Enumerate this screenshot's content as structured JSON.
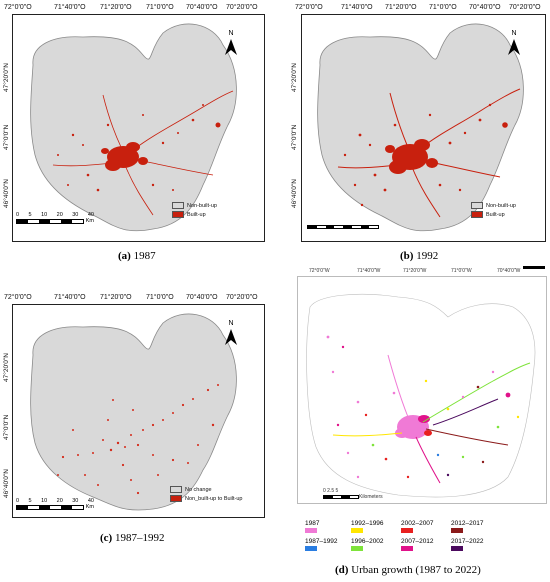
{
  "panels": {
    "a": {
      "caption_label": "(a)",
      "caption_text": "1987",
      "lon_ticks": [
        "72°0'0\"O",
        "71°40'0\"O",
        "71°20'0\"O",
        "71°0'0\"O",
        "70°40'0\"O",
        "70°20'0\"O"
      ],
      "lat_ticks": [
        "47°20'0\"N",
        "47°0'0\"N",
        "46°40'0\"N"
      ],
      "legend": [
        "Non-built-up",
        "Built-up"
      ],
      "scale_labels": [
        "0",
        "5",
        "10",
        "20",
        "30",
        "40"
      ],
      "scale_unit": "Km"
    },
    "b": {
      "caption_label": "(b)",
      "caption_text": "1992",
      "lon_ticks": [
        "72°0'0\"O",
        "71°40'0\"O",
        "71°20'0\"O",
        "71°0'0\"O",
        "70°40'0\"O",
        "70°20'0\"O"
      ],
      "lat_ticks": [
        "47°20'0\"N",
        "47°0'0\"N",
        "46°40'0\"N"
      ],
      "legend": [
        "Non-built-up",
        "Built-up"
      ]
    },
    "c": {
      "caption_label": "(c)",
      "caption_text": "1987–1992",
      "lon_ticks": [
        "72°0'0\"O",
        "71°40'0\"O",
        "71°20'0\"O",
        "71°0'0\"O",
        "70°40'0\"O",
        "70°20'0\"O"
      ],
      "lat_ticks": [
        "47°20'0\"N",
        "47°0'0\"N",
        "46°40'0\"N"
      ],
      "legend": [
        "No change",
        "Non_built-up to Built-up"
      ],
      "scale_labels": [
        "0",
        "5",
        "10",
        "20",
        "30",
        "40"
      ],
      "scale_unit": "Km"
    },
    "d": {
      "caption_label": "(d)",
      "caption_text": "Urban growth (1987 to 2022)",
      "lon_ticks": [
        "72°0'0\"W",
        "71°40'0\"W",
        "71°20'0\"W",
        "71°0'0\"W",
        "70°40'0\"W"
      ],
      "scale_text": "0 2.5 5",
      "scale_unit": "Kilometers",
      "growth_legend": [
        {
          "label": "1987",
          "color": "#f07ad6"
        },
        {
          "label": "1992–1996",
          "color": "#ffe600"
        },
        {
          "label": "2002–2007",
          "color": "#e8201f"
        },
        {
          "label": "2012–2017",
          "color": "#8b1a1a"
        },
        {
          "label": "1987–1992",
          "color": "#2a7de1"
        },
        {
          "label": "1996–2002",
          "color": "#7ee33a"
        },
        {
          "label": "2007–2012",
          "color": "#e0128a"
        },
        {
          "label": "2017–2022",
          "color": "#4b0a5e"
        }
      ]
    }
  },
  "north_label": "N",
  "colors": {
    "land": "#d9d9d9",
    "builtup": "#c8200e",
    "outline": "#8a8a8a"
  }
}
